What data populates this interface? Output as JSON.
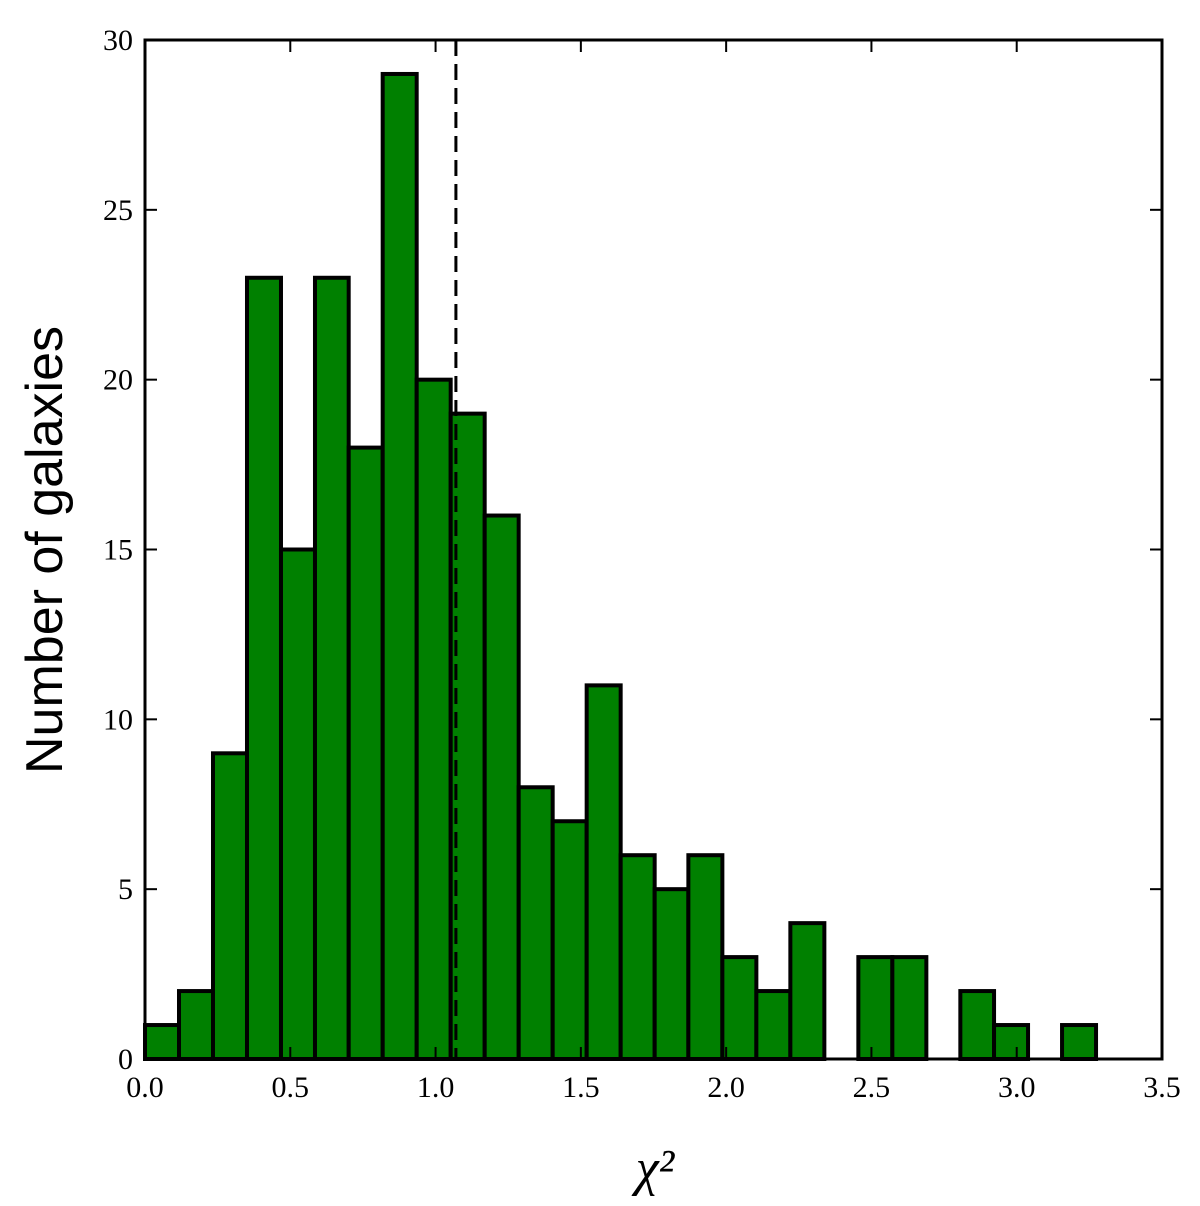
{
  "chart_data": {
    "type": "histogram",
    "x_label": "χ²",
    "y_label": "Number of galaxies",
    "bins": [
      0,
      0.117,
      0.234,
      0.351,
      0.468,
      0.585,
      0.701,
      0.818,
      0.935,
      1.052,
      1.169,
      1.286,
      1.403,
      1.52,
      1.637,
      1.754,
      1.87,
      1.987,
      2.104,
      2.221,
      2.338,
      2.455,
      2.572,
      2.689,
      2.806,
      2.922,
      3.039,
      3.156,
      3.273
    ],
    "values": [
      1,
      2,
      9,
      23,
      15,
      23,
      18,
      29,
      20,
      19,
      16,
      8,
      7,
      11,
      6,
      5,
      6,
      3,
      2,
      4,
      0,
      3,
      3,
      0,
      2,
      1,
      0,
      1
    ],
    "color": "#008000",
    "edge_color": "#000000",
    "vline": 1.07,
    "xlim": [
      0,
      3.5
    ],
    "ylim": [
      0,
      30
    ],
    "xticks": [
      {
        "value": 0,
        "label": "0.0"
      },
      {
        "value": 0.5,
        "label": "0.5"
      },
      {
        "value": 1,
        "label": "1.0"
      },
      {
        "value": 1.5,
        "label": "1.5"
      },
      {
        "value": 2,
        "label": "2.0"
      },
      {
        "value": 2.5,
        "label": "2.5"
      },
      {
        "value": 3,
        "label": "3.0"
      },
      {
        "value": 3.5,
        "label": "3.5"
      }
    ],
    "yticks": [
      0,
      5,
      10,
      15,
      20,
      25,
      30
    ],
    "grid": false
  }
}
